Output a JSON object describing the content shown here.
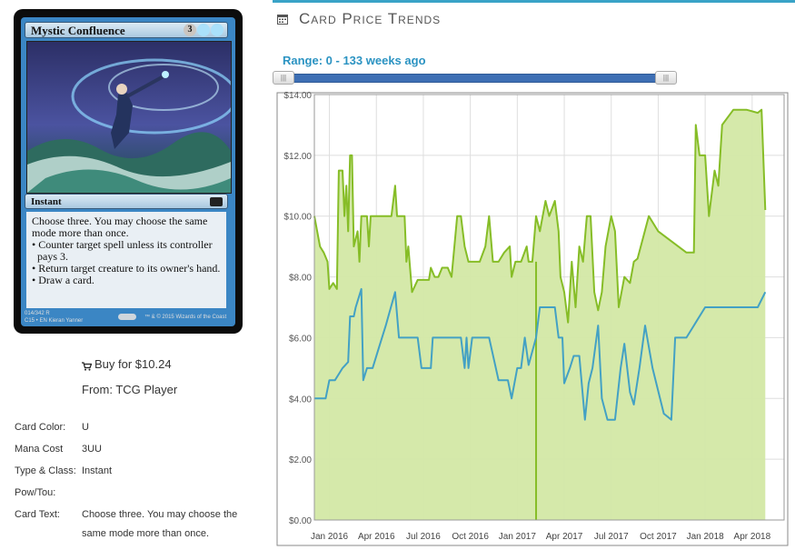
{
  "card": {
    "name": "Mystic Confluence",
    "mana_cost_symbols": [
      "3",
      "U",
      "U"
    ],
    "type_line": "Instant",
    "rules_intro": "Choose three. You may choose the same mode more than once.",
    "rules_bullets": [
      "• Counter target spell unless its controller pays 3.",
      "• Return target creature to its owner's hand.",
      "• Draw a card."
    ],
    "collector_line": "014/342 R",
    "set_line": "C15 • EN",
    "artist": "Kieran Yanner",
    "copyright": "™ & © 2015 Wizards of the Coast"
  },
  "purchase": {
    "buy_label": "Buy for $10.24",
    "from_label": "From: TCG Player",
    "cart_icon": "cart-icon"
  },
  "details": [
    {
      "label": "Card Color:",
      "value": "U"
    },
    {
      "label": "Mana Cost",
      "value": "3UU"
    },
    {
      "label": "Type & Class:",
      "value": "Instant"
    },
    {
      "label": "Pow/Tou:",
      "value": ""
    },
    {
      "label": "Card Text:",
      "value": "Choose three. You may choose the same mode more than once."
    }
  ],
  "trends": {
    "title": "Card Price Trends",
    "icon": "calendar-icon",
    "range_label": "Range: 0 - 133 weeks ago",
    "range_weeks": [
      0,
      133
    ]
  },
  "colors": {
    "accent": "#3aa3c7",
    "series_high": "#86bd27",
    "series_high_fill": "#d3e8a5",
    "series_low": "#43a1c4",
    "slider": "#3e6fb4"
  },
  "chart_data": {
    "type": "line",
    "x_tick_labels": [
      "Jan 2016",
      "Apr 2016",
      "Jul 2016",
      "Oct 2016",
      "Jan 2017",
      "Apr 2017",
      "Jul 2017",
      "Oct 2017",
      "Jan 2018",
      "Apr 2018"
    ],
    "x_ticks": [
      2016.0,
      2016.25,
      2016.5,
      2016.75,
      2017.0,
      2017.25,
      2017.5,
      2017.75,
      2018.0,
      2018.25
    ],
    "y_tick_labels": [
      "$0.00",
      "$2.00",
      "$4.00",
      "$6.00",
      "$8.00",
      "$10.00",
      "$12.00",
      "$14.00"
    ],
    "ylim": [
      0,
      14
    ],
    "xlim": [
      2015.92,
      2018.42
    ],
    "grid": true,
    "series": [
      {
        "points": [
          [
            2015.92,
            10.0
          ],
          [
            2015.95,
            9.0
          ],
          [
            2015.97,
            8.8
          ],
          [
            2015.99,
            8.5
          ],
          [
            2016.0,
            7.6
          ],
          [
            2016.02,
            7.8
          ],
          [
            2016.04,
            7.6
          ],
          [
            2016.05,
            11.5
          ],
          [
            2016.07,
            11.5
          ],
          [
            2016.08,
            10.0
          ],
          [
            2016.09,
            11.0
          ],
          [
            2016.1,
            9.5
          ],
          [
            2016.11,
            12.0
          ],
          [
            2016.12,
            12.0
          ],
          [
            2016.13,
            9.0
          ],
          [
            2016.15,
            9.5
          ],
          [
            2016.16,
            8.5
          ],
          [
            2016.17,
            10.0
          ],
          [
            2016.2,
            10.0
          ],
          [
            2016.21,
            9.0
          ],
          [
            2016.22,
            10.0
          ],
          [
            2016.26,
            10.0
          ],
          [
            2016.3,
            10.0
          ],
          [
            2016.33,
            10.0
          ],
          [
            2016.35,
            11.0
          ],
          [
            2016.36,
            10.0
          ],
          [
            2016.4,
            10.0
          ],
          [
            2016.41,
            8.5
          ],
          [
            2016.42,
            9.0
          ],
          [
            2016.44,
            7.5
          ],
          [
            2016.47,
            7.9
          ],
          [
            2016.53,
            7.9
          ],
          [
            2016.54,
            8.3
          ],
          [
            2016.56,
            8.0
          ],
          [
            2016.58,
            8.0
          ],
          [
            2016.6,
            8.3
          ],
          [
            2016.63,
            8.3
          ],
          [
            2016.65,
            8.0
          ],
          [
            2016.68,
            10.0
          ],
          [
            2016.7,
            10.0
          ],
          [
            2016.72,
            9.0
          ],
          [
            2016.74,
            8.5
          ],
          [
            2016.8,
            8.5
          ],
          [
            2016.83,
            9.0
          ],
          [
            2016.85,
            10.0
          ],
          [
            2016.87,
            8.5
          ],
          [
            2016.9,
            8.5
          ],
          [
            2016.93,
            8.8
          ],
          [
            2016.96,
            9.0
          ],
          [
            2016.97,
            8.0
          ],
          [
            2016.99,
            8.5
          ],
          [
            2017.02,
            8.5
          ],
          [
            2017.05,
            9.0
          ],
          [
            2017.06,
            8.5
          ],
          [
            2017.08,
            8.5
          ],
          [
            2017.1,
            10.0
          ],
          [
            2017.12,
            9.5
          ],
          [
            2017.15,
            10.5
          ],
          [
            2017.17,
            10.0
          ],
          [
            2017.2,
            10.5
          ],
          [
            2017.22,
            9.5
          ],
          [
            2017.23,
            8.0
          ],
          [
            2017.25,
            7.5
          ],
          [
            2017.27,
            6.5
          ],
          [
            2017.29,
            8.5
          ],
          [
            2017.31,
            7.0
          ],
          [
            2017.33,
            9.0
          ],
          [
            2017.35,
            8.5
          ],
          [
            2017.37,
            10.0
          ],
          [
            2017.39,
            10.0
          ],
          [
            2017.41,
            7.5
          ],
          [
            2017.43,
            6.9
          ],
          [
            2017.45,
            7.5
          ],
          [
            2017.47,
            9.0
          ],
          [
            2017.5,
            10.0
          ],
          [
            2017.52,
            9.5
          ],
          [
            2017.54,
            7.0
          ],
          [
            2017.57,
            8.0
          ],
          [
            2017.6,
            7.8
          ],
          [
            2017.62,
            8.5
          ],
          [
            2017.64,
            8.6
          ],
          [
            2017.7,
            10.0
          ],
          [
            2017.75,
            9.5
          ],
          [
            2017.9,
            8.8
          ],
          [
            2017.94,
            8.8
          ],
          [
            2017.95,
            13.0
          ],
          [
            2017.97,
            12.0
          ],
          [
            2018.0,
            12.0
          ],
          [
            2018.02,
            10.0
          ],
          [
            2018.05,
            11.5
          ],
          [
            2018.07,
            11.0
          ],
          [
            2018.09,
            13.0
          ],
          [
            2018.15,
            13.5
          ],
          [
            2018.22,
            13.5
          ],
          [
            2018.28,
            13.4
          ],
          [
            2018.3,
            13.5
          ],
          [
            2018.32,
            10.2
          ]
        ]
      },
      {
        "points": [
          [
            2015.92,
            4.0
          ],
          [
            2015.95,
            4.0
          ],
          [
            2015.98,
            4.0
          ],
          [
            2016.0,
            4.6
          ],
          [
            2016.03,
            4.6
          ],
          [
            2016.05,
            4.8
          ],
          [
            2016.07,
            5.0
          ],
          [
            2016.1,
            5.2
          ],
          [
            2016.11,
            6.7
          ],
          [
            2016.13,
            6.7
          ],
          [
            2016.14,
            7.0
          ],
          [
            2016.17,
            7.6
          ],
          [
            2016.18,
            4.6
          ],
          [
            2016.2,
            5.0
          ],
          [
            2016.23,
            5.0
          ],
          [
            2016.26,
            5.6
          ],
          [
            2016.3,
            6.4
          ],
          [
            2016.35,
            7.5
          ],
          [
            2016.37,
            6.0
          ],
          [
            2016.45,
            6.0
          ],
          [
            2016.47,
            6.0
          ],
          [
            2016.49,
            5.0
          ],
          [
            2016.54,
            5.0
          ],
          [
            2016.55,
            6.0
          ],
          [
            2016.7,
            6.0
          ],
          [
            2016.72,
            5.0
          ],
          [
            2016.73,
            6.0
          ],
          [
            2016.74,
            5.0
          ],
          [
            2016.76,
            6.0
          ],
          [
            2016.8,
            6.0
          ],
          [
            2016.85,
            6.0
          ],
          [
            2016.9,
            4.6
          ],
          [
            2016.95,
            4.6
          ],
          [
            2016.97,
            4.0
          ],
          [
            2017.0,
            5.0
          ],
          [
            2017.02,
            5.0
          ],
          [
            2017.04,
            6.0
          ],
          [
            2017.06,
            5.1
          ],
          [
            2017.1,
            6.0
          ],
          [
            2017.12,
            7.0
          ],
          [
            2017.2,
            7.0
          ],
          [
            2017.22,
            6.0
          ],
          [
            2017.24,
            6.0
          ],
          [
            2017.25,
            4.5
          ],
          [
            2017.28,
            5.0
          ],
          [
            2017.3,
            5.4
          ],
          [
            2017.33,
            5.4
          ],
          [
            2017.36,
            3.3
          ],
          [
            2017.38,
            4.5
          ],
          [
            2017.4,
            5.0
          ],
          [
            2017.43,
            6.4
          ],
          [
            2017.45,
            4.0
          ],
          [
            2017.48,
            3.3
          ],
          [
            2017.52,
            3.3
          ],
          [
            2017.55,
            5.0
          ],
          [
            2017.57,
            5.8
          ],
          [
            2017.6,
            4.2
          ],
          [
            2017.62,
            3.8
          ],
          [
            2017.65,
            5.0
          ],
          [
            2017.68,
            6.4
          ],
          [
            2017.72,
            5.0
          ],
          [
            2017.78,
            3.5
          ],
          [
            2017.82,
            3.3
          ],
          [
            2017.84,
            6.0
          ],
          [
            2017.9,
            6.0
          ],
          [
            2017.95,
            6.5
          ],
          [
            2018.0,
            7.0
          ],
          [
            2018.1,
            7.0
          ],
          [
            2018.2,
            7.0
          ],
          [
            2018.28,
            7.0
          ],
          [
            2018.32,
            7.5
          ]
        ]
      }
    ]
  }
}
